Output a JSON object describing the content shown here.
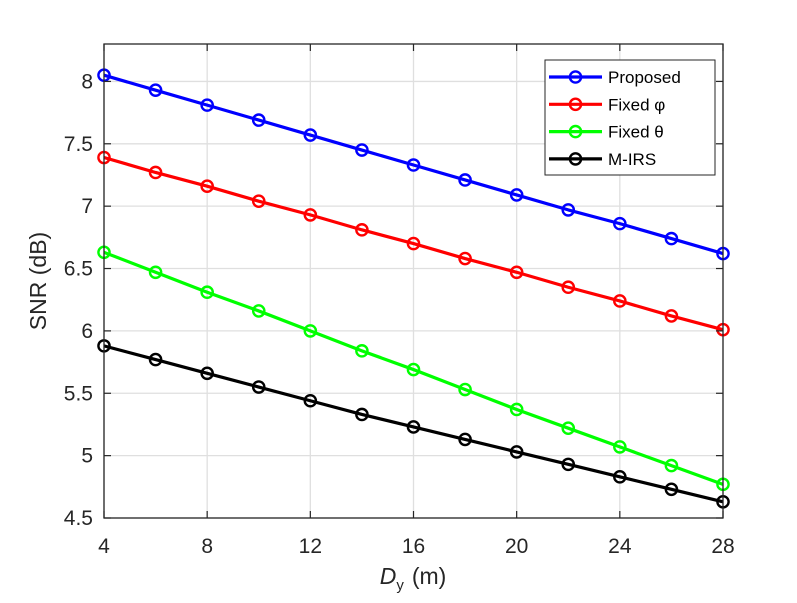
{
  "chart_data": {
    "type": "line",
    "x": [
      4,
      6,
      8,
      10,
      12,
      14,
      16,
      18,
      20,
      22,
      24,
      26,
      28
    ],
    "series": [
      {
        "name": "Proposed",
        "color": "#0000ff",
        "marker": "circle",
        "values": [
          8.05,
          7.93,
          7.81,
          7.69,
          7.57,
          7.45,
          7.33,
          7.21,
          7.09,
          6.97,
          6.86,
          6.74,
          6.62
        ]
      },
      {
        "name": "Fixed φ",
        "color": "#ff0000",
        "marker": "circle",
        "values": [
          7.39,
          7.27,
          7.16,
          7.04,
          6.93,
          6.81,
          6.7,
          6.58,
          6.47,
          6.35,
          6.24,
          6.12,
          6.01
        ]
      },
      {
        "name": "Fixed θ",
        "color": "#00ff00",
        "marker": "circle",
        "values": [
          6.63,
          6.47,
          6.31,
          6.16,
          6.0,
          5.84,
          5.69,
          5.53,
          5.37,
          5.22,
          5.07,
          4.92,
          4.77
        ]
      },
      {
        "name": "M-IRS",
        "color": "#000000",
        "marker": "circle",
        "values": [
          5.88,
          5.77,
          5.66,
          5.55,
          5.44,
          5.33,
          5.23,
          5.13,
          5.03,
          4.93,
          4.83,
          4.73,
          4.63
        ]
      }
    ],
    "xlabel_var": "D",
    "xlabel_sub": "y",
    "xlabel_unit": "(m)",
    "ylabel": "SNR (dB)",
    "xlim": [
      4,
      28
    ],
    "ylim": [
      4.5,
      8.3
    ],
    "xticks": [
      4,
      8,
      12,
      16,
      20,
      24,
      28
    ],
    "xtick_labels": [
      "4",
      "8",
      "12",
      "16",
      "20",
      "24",
      "28"
    ],
    "yticks": [
      4.5,
      5,
      5.5,
      6,
      6.5,
      7,
      7.5,
      8
    ],
    "ytick_labels": [
      "4.5",
      "5",
      "5.5",
      "6",
      "6.5",
      "7",
      "7.5",
      "8"
    ],
    "grid": true,
    "legend_position": "top-right"
  }
}
